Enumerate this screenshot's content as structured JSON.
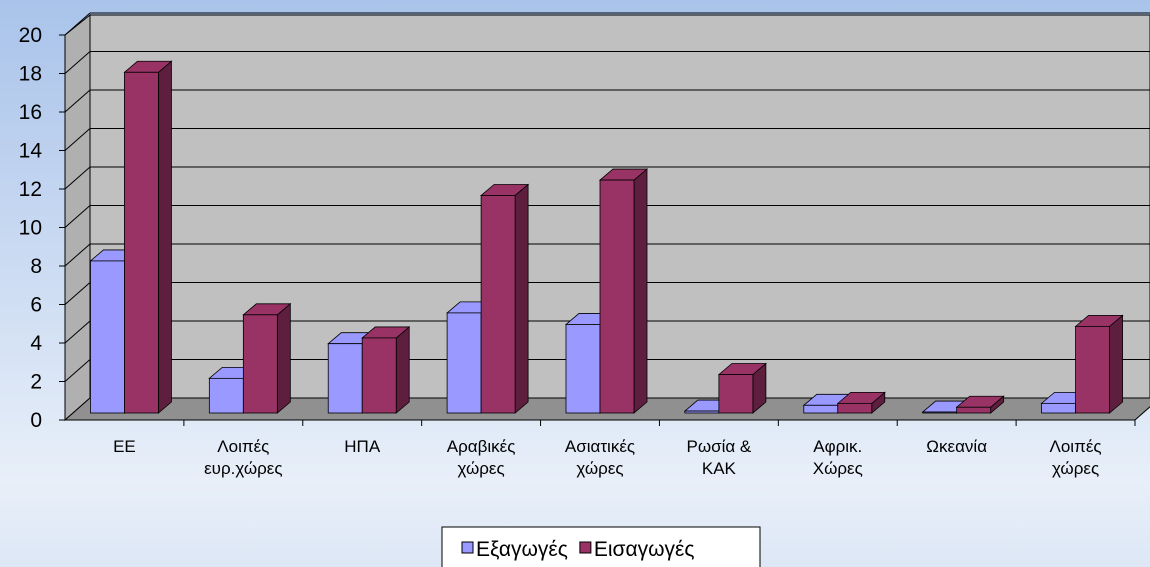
{
  "chart_data": {
    "type": "bar3d",
    "categories": [
      "ΕΕ",
      "Λοιπές\nευρ.χώρες",
      "ΗΠΑ",
      "Αραβικές\nχώρες",
      "Ασιατικές\nχώρες",
      "Ρωσία &\nΚΑΚ",
      "Αφρικ.\nΧώρες",
      "Ωκεανία",
      "Λοιπές\nχώρες"
    ],
    "series": [
      {
        "name": "Εξαγωγές",
        "color": "#9999ff",
        "side": "#6666bb",
        "values": [
          7.9,
          1.8,
          3.6,
          5.2,
          4.6,
          0.1,
          0.4,
          0.05,
          0.5
        ]
      },
      {
        "name": "Εισαγωγές",
        "color": "#993366",
        "side": "#5e1f3f",
        "values": [
          17.7,
          5.1,
          3.9,
          11.3,
          12.1,
          2.0,
          0.5,
          0.3,
          4.5
        ]
      }
    ],
    "ylim": [
      0,
      20
    ],
    "yticks": [
      0,
      2,
      4,
      6,
      8,
      10,
      12,
      14,
      16,
      18,
      20
    ],
    "grid": true,
    "legend": "bottom"
  }
}
